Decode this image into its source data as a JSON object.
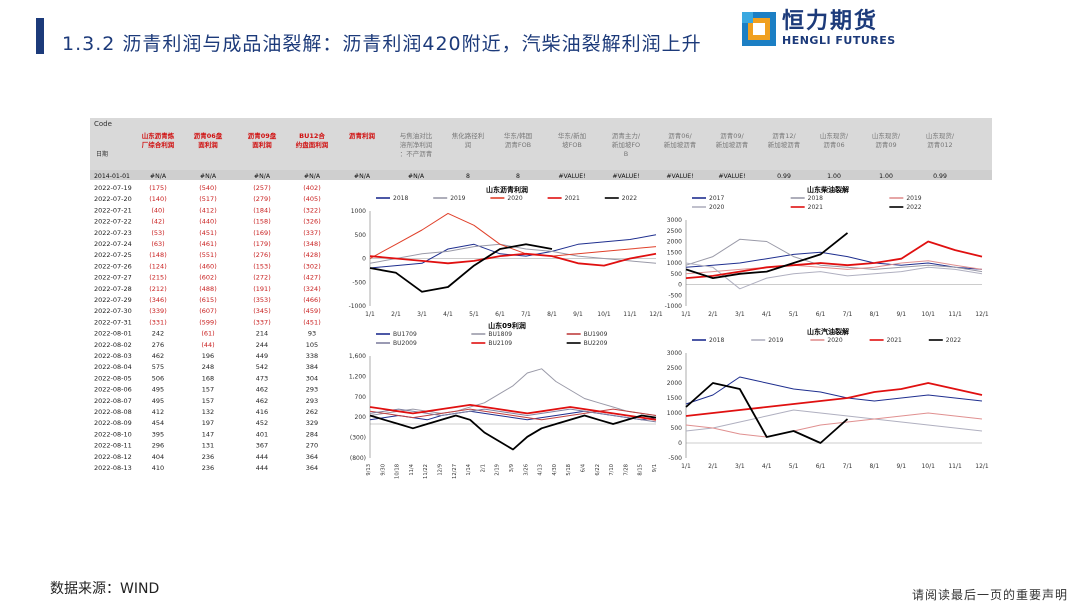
{
  "title": "1.3.2 沥青利润与成品油裂解：沥青利润420附近，汽柴油裂解利润上升",
  "logo": {
    "cn": "恒力期货",
    "en": "HENGLI FUTURES"
  },
  "footer": {
    "source": "数据来源：WIND",
    "disclaimer": "请阅读最后一页的重要声明"
  },
  "table": {
    "code_label": "Code",
    "date_label": "日期",
    "headers": [
      "山东沥青炼厂综合利润",
      "沥青06盘面利润",
      "沥青09盘面利润",
      "BU12合约盘面利润",
      "沥青利润",
      "与焦油对比溶剂净利润：不产沥青",
      "焦化路径利润",
      "华东/韩国沥青FOB",
      "华东/新加坡FOB",
      "沥青主力/新加坡FOB",
      "沥青06/新加坡沥青",
      "沥青09/新加坡沥青",
      "沥青12/新加坡沥青",
      "山东现货/沥青06",
      "山东现货/沥青09",
      "山东现货/沥青012",
      "华东现货/沥青06"
    ],
    "header_red": [
      true,
      true,
      true,
      true,
      true,
      false,
      false,
      false,
      false,
      false,
      false,
      false,
      false,
      false,
      false,
      false,
      false
    ],
    "ref_row": {
      "date": "2014-01-01",
      "cells": [
        "#N/A",
        "#N/A",
        "#N/A",
        "#N/A",
        "#N/A",
        "#N/A",
        "8",
        "8",
        "#VALUE!",
        "#VALUE!",
        "#VALUE!",
        "#VALUE!",
        "0.99",
        "1.00",
        "1.00",
        "0.99"
      ]
    },
    "rows": [
      {
        "date": "2022-07-19",
        "c1": "(175)",
        "c2": "(540)",
        "c3": "(257)",
        "c4": "(402)"
      },
      {
        "date": "2022-07-20",
        "c1": "(140)",
        "c2": "(517)",
        "c3": "(279)",
        "c4": "(405)"
      },
      {
        "date": "2022-07-21",
        "c1": "(40)",
        "c2": "(412)",
        "c3": "(184)",
        "c4": "(322)"
      },
      {
        "date": "2022-07-22",
        "c1": "(42)",
        "c2": "(440)",
        "c3": "(158)",
        "c4": "(326)"
      },
      {
        "date": "2022-07-23",
        "c1": "(53)",
        "c2": "(451)",
        "c3": "(169)",
        "c4": "(337)"
      },
      {
        "date": "2022-07-24",
        "c1": "(63)",
        "c2": "(461)",
        "c3": "(179)",
        "c4": "(348)"
      },
      {
        "date": "2022-07-25",
        "c1": "(148)",
        "c2": "(551)",
        "c3": "(276)",
        "c4": "(428)"
      },
      {
        "date": "2022-07-26",
        "c1": "(124)",
        "c2": "(460)",
        "c3": "(153)",
        "c4": "(302)"
      },
      {
        "date": "2022-07-27",
        "c1": "(215)",
        "c2": "(602)",
        "c3": "(272)",
        "c4": "(427)"
      },
      {
        "date": "2022-07-28",
        "c1": "(212)",
        "c2": "(488)",
        "c3": "(191)",
        "c4": "(324)"
      },
      {
        "date": "2022-07-29",
        "c1": "(346)",
        "c2": "(615)",
        "c3": "(353)",
        "c4": "(466)"
      },
      {
        "date": "2022-07-30",
        "c1": "(339)",
        "c2": "(607)",
        "c3": "(345)",
        "c4": "(459)"
      },
      {
        "date": "2022-07-31",
        "c1": "(331)",
        "c2": "(599)",
        "c3": "(337)",
        "c4": "(451)"
      },
      {
        "date": "2022-08-01",
        "c1": "242",
        "c2": "(61)",
        "c3": "214",
        "c4": "93"
      },
      {
        "date": "2022-08-02",
        "c1": "276",
        "c2": "(44)",
        "c3": "244",
        "c4": "105"
      },
      {
        "date": "2022-08-03",
        "c1": "462",
        "c2": "196",
        "c3": "449",
        "c4": "338"
      },
      {
        "date": "2022-08-04",
        "c1": "575",
        "c2": "248",
        "c3": "542",
        "c4": "384"
      },
      {
        "date": "2022-08-05",
        "c1": "506",
        "c2": "168",
        "c3": "473",
        "c4": "304"
      },
      {
        "date": "2022-08-06",
        "c1": "495",
        "c2": "157",
        "c3": "462",
        "c4": "293"
      },
      {
        "date": "2022-08-07",
        "c1": "495",
        "c2": "157",
        "c3": "462",
        "c4": "293"
      },
      {
        "date": "2022-08-08",
        "c1": "412",
        "c2": "132",
        "c3": "416",
        "c4": "262"
      },
      {
        "date": "2022-08-09",
        "c1": "454",
        "c2": "197",
        "c3": "452",
        "c4": "329"
      },
      {
        "date": "2022-08-10",
        "c1": "395",
        "c2": "147",
        "c3": "401",
        "c4": "284"
      },
      {
        "date": "2022-08-11",
        "c1": "296",
        "c2": "131",
        "c3": "367",
        "c4": "270"
      },
      {
        "date": "2022-08-12",
        "c1": "404",
        "c2": "236",
        "c3": "444",
        "c4": "364"
      },
      {
        "date": "2022-08-13",
        "c1": "410",
        "c2": "236",
        "c3": "444",
        "c4": "364"
      }
    ],
    "last_row_extra": [
      "682",
      "1,459.05",
      "-153",
      "9",
      "8",
      "1.08",
      "1.02",
      "1.11",
      "1.08",
      "1.08",
      "0.99",
      "1.03",
      "1.17"
    ]
  },
  "chart_data": [
    {
      "type": "line",
      "title": "山东沥青利润",
      "xlabel": "",
      "ylabel": "",
      "x_ticks": [
        "1/1",
        "2/1",
        "3/1",
        "4/1",
        "5/1",
        "6/1",
        "7/1",
        "8/1",
        "9/1",
        "10/1",
        "11/1",
        "12/1"
      ],
      "y_ticks": [
        "1000",
        "500",
        "0",
        "-500",
        "-1000"
      ],
      "ylim": [
        -1000,
        1000
      ],
      "legend_position": "top",
      "series": [
        {
          "name": "2018",
          "color": "#1f2f8f",
          "values": [
            -200,
            -150,
            -100,
            200,
            300,
            100,
            50,
            150,
            300,
            350,
            400,
            500
          ]
        },
        {
          "name": "2019",
          "color": "#9a9aa8",
          "values": [
            -100,
            0,
            100,
            150,
            250,
            300,
            200,
            150,
            50,
            0,
            -50,
            -100
          ]
        },
        {
          "name": "2020",
          "color": "#e0402a",
          "values": [
            0,
            300,
            600,
            950,
            700,
            300,
            100,
            50,
            100,
            150,
            200,
            250
          ]
        },
        {
          "name": "2021",
          "color": "#e01010",
          "values": [
            50,
            0,
            -50,
            -100,
            -50,
            50,
            100,
            50,
            -100,
            -150,
            0,
            100
          ]
        },
        {
          "name": "2022",
          "color": "#000000",
          "values": [
            -200,
            -300,
            -700,
            -600,
            -150,
            200,
            300,
            200,
            null,
            null,
            null,
            null
          ]
        }
      ]
    },
    {
      "type": "line",
      "title": "山东柴油裂解",
      "xlabel": "",
      "ylabel": "",
      "x_ticks": [
        "1/1",
        "2/1",
        "3/1",
        "4/1",
        "5/1",
        "6/1",
        "7/1",
        "8/1",
        "9/1",
        "10/1",
        "11/1",
        "12/1"
      ],
      "y_ticks": [
        "3000",
        "2500",
        "2000",
        "1500",
        "1000",
        "500",
        "0",
        "-500",
        "-1000"
      ],
      "ylim": [
        -1000,
        3000
      ],
      "legend_position": "top",
      "series": [
        {
          "name": "2017",
          "color": "#1f2f8f",
          "values": [
            800,
            900,
            1000,
            1200,
            1400,
            1500,
            1300,
            1000,
            900,
            1000,
            800,
            700
          ]
        },
        {
          "name": "2018",
          "color": "#9a9aa8",
          "values": [
            900,
            1300,
            2100,
            2000,
            1300,
            900,
            800,
            700,
            800,
            900,
            800,
            600
          ]
        },
        {
          "name": "2019",
          "color": "#e09090",
          "values": [
            500,
            600,
            700,
            800,
            900,
            800,
            700,
            800,
            1000,
            1100,
            900,
            700
          ]
        },
        {
          "name": "2020",
          "color": "#b0b0c0",
          "values": [
            1000,
            800,
            -200,
            300,
            500,
            600,
            400,
            500,
            600,
            800,
            700,
            500
          ]
        },
        {
          "name": "2021",
          "color": "#e01010",
          "values": [
            300,
            400,
            600,
            800,
            900,
            1000,
            900,
            1000,
            1200,
            2000,
            1600,
            1300
          ]
        },
        {
          "name": "2022",
          "color": "#000000",
          "values": [
            700,
            300,
            500,
            600,
            1000,
            1400,
            2400,
            null,
            null,
            null,
            null,
            null
          ]
        }
      ]
    },
    {
      "type": "line",
      "title": "山东09利润",
      "xlabel": "",
      "ylabel": "",
      "x_ticks": [
        "9/13",
        "9/30",
        "10/18",
        "11/4",
        "11/22",
        "12/9",
        "12/27",
        "1/14",
        "2/1",
        "2/19",
        "3/9",
        "3/26",
        "4/13",
        "4/30",
        "5/18",
        "6/4",
        "6/22",
        "7/10",
        "7/28",
        "8/15",
        "9/1"
      ],
      "y_ticks": [
        "1,600",
        "1,200",
        "700",
        "200",
        "(300)",
        "(800)"
      ],
      "ylim": [
        -800,
        1600
      ],
      "legend_position": "top",
      "series": [
        {
          "name": "BU1709",
          "color": "#1f2f8f",
          "values": [
            100,
            150,
            200,
            150,
            100,
            200,
            250,
            300,
            250,
            200,
            150,
            100,
            150,
            200,
            250,
            300,
            250,
            200,
            150,
            100,
            150
          ]
        },
        {
          "name": "BU1809",
          "color": "#9a9aa8",
          "values": [
            200,
            250,
            300,
            350,
            300,
            250,
            300,
            400,
            500,
            700,
            900,
            1200,
            1300,
            1000,
            800,
            600,
            500,
            400,
            300,
            250,
            200
          ]
        },
        {
          "name": "BU1909",
          "color": "#c04040",
          "values": [
            300,
            250,
            200,
            150,
            200,
            250,
            300,
            350,
            300,
            250,
            200,
            150,
            100,
            150,
            200,
            250,
            300,
            350,
            300,
            250,
            200
          ]
        },
        {
          "name": "BU2009",
          "color": "#8080a0",
          "values": [
            250,
            300,
            350,
            300,
            250,
            200,
            250,
            300,
            350,
            300,
            250,
            200,
            250,
            300,
            350,
            300,
            250,
            200,
            150,
            100,
            50
          ]
        },
        {
          "name": "BU2109",
          "color": "#e01010",
          "values": [
            400,
            350,
            300,
            250,
            300,
            350,
            400,
            450,
            400,
            350,
            300,
            250,
            300,
            350,
            400,
            350,
            300,
            250,
            200,
            150,
            100
          ]
        },
        {
          "name": "BU2209",
          "color": "#000000",
          "values": [
            200,
            100,
            0,
            -100,
            0,
            100,
            200,
            100,
            -200,
            -400,
            -600,
            -300,
            -100,
            0,
            100,
            200,
            100,
            0,
            100,
            200,
            150
          ]
        }
      ]
    },
    {
      "type": "line",
      "title": "山东汽油裂解",
      "xlabel": "",
      "ylabel": "",
      "x_ticks": [
        "1/1",
        "2/1",
        "3/1",
        "4/1",
        "5/1",
        "6/1",
        "7/1",
        "8/1",
        "9/1",
        "10/1",
        "11/1",
        "12/1"
      ],
      "y_ticks": [
        "3000",
        "2500",
        "2000",
        "1500",
        "1000",
        "500",
        "0",
        "-500"
      ],
      "ylim": [
        -500,
        3000
      ],
      "legend_position": "top",
      "series": [
        {
          "name": "2018",
          "color": "#1f2f8f",
          "values": [
            1300,
            1600,
            2200,
            2000,
            1800,
            1700,
            1500,
            1400,
            1500,
            1600,
            1500,
            1400
          ]
        },
        {
          "name": "2019",
          "color": "#b0b0c0",
          "values": [
            400,
            500,
            700,
            900,
            1100,
            1000,
            900,
            800,
            700,
            600,
            500,
            400
          ]
        },
        {
          "name": "2020",
          "color": "#e09090",
          "values": [
            600,
            500,
            300,
            200,
            400,
            600,
            700,
            800,
            900,
            1000,
            900,
            800
          ]
        },
        {
          "name": "2021",
          "color": "#e01010",
          "values": [
            900,
            1000,
            1100,
            1200,
            1300,
            1400,
            1500,
            1700,
            1800,
            2000,
            1800,
            1600
          ]
        },
        {
          "name": "2022",
          "color": "#000000",
          "values": [
            1200,
            2000,
            1800,
            200,
            400,
            0,
            800,
            null,
            null,
            null,
            null,
            null
          ]
        }
      ]
    }
  ]
}
